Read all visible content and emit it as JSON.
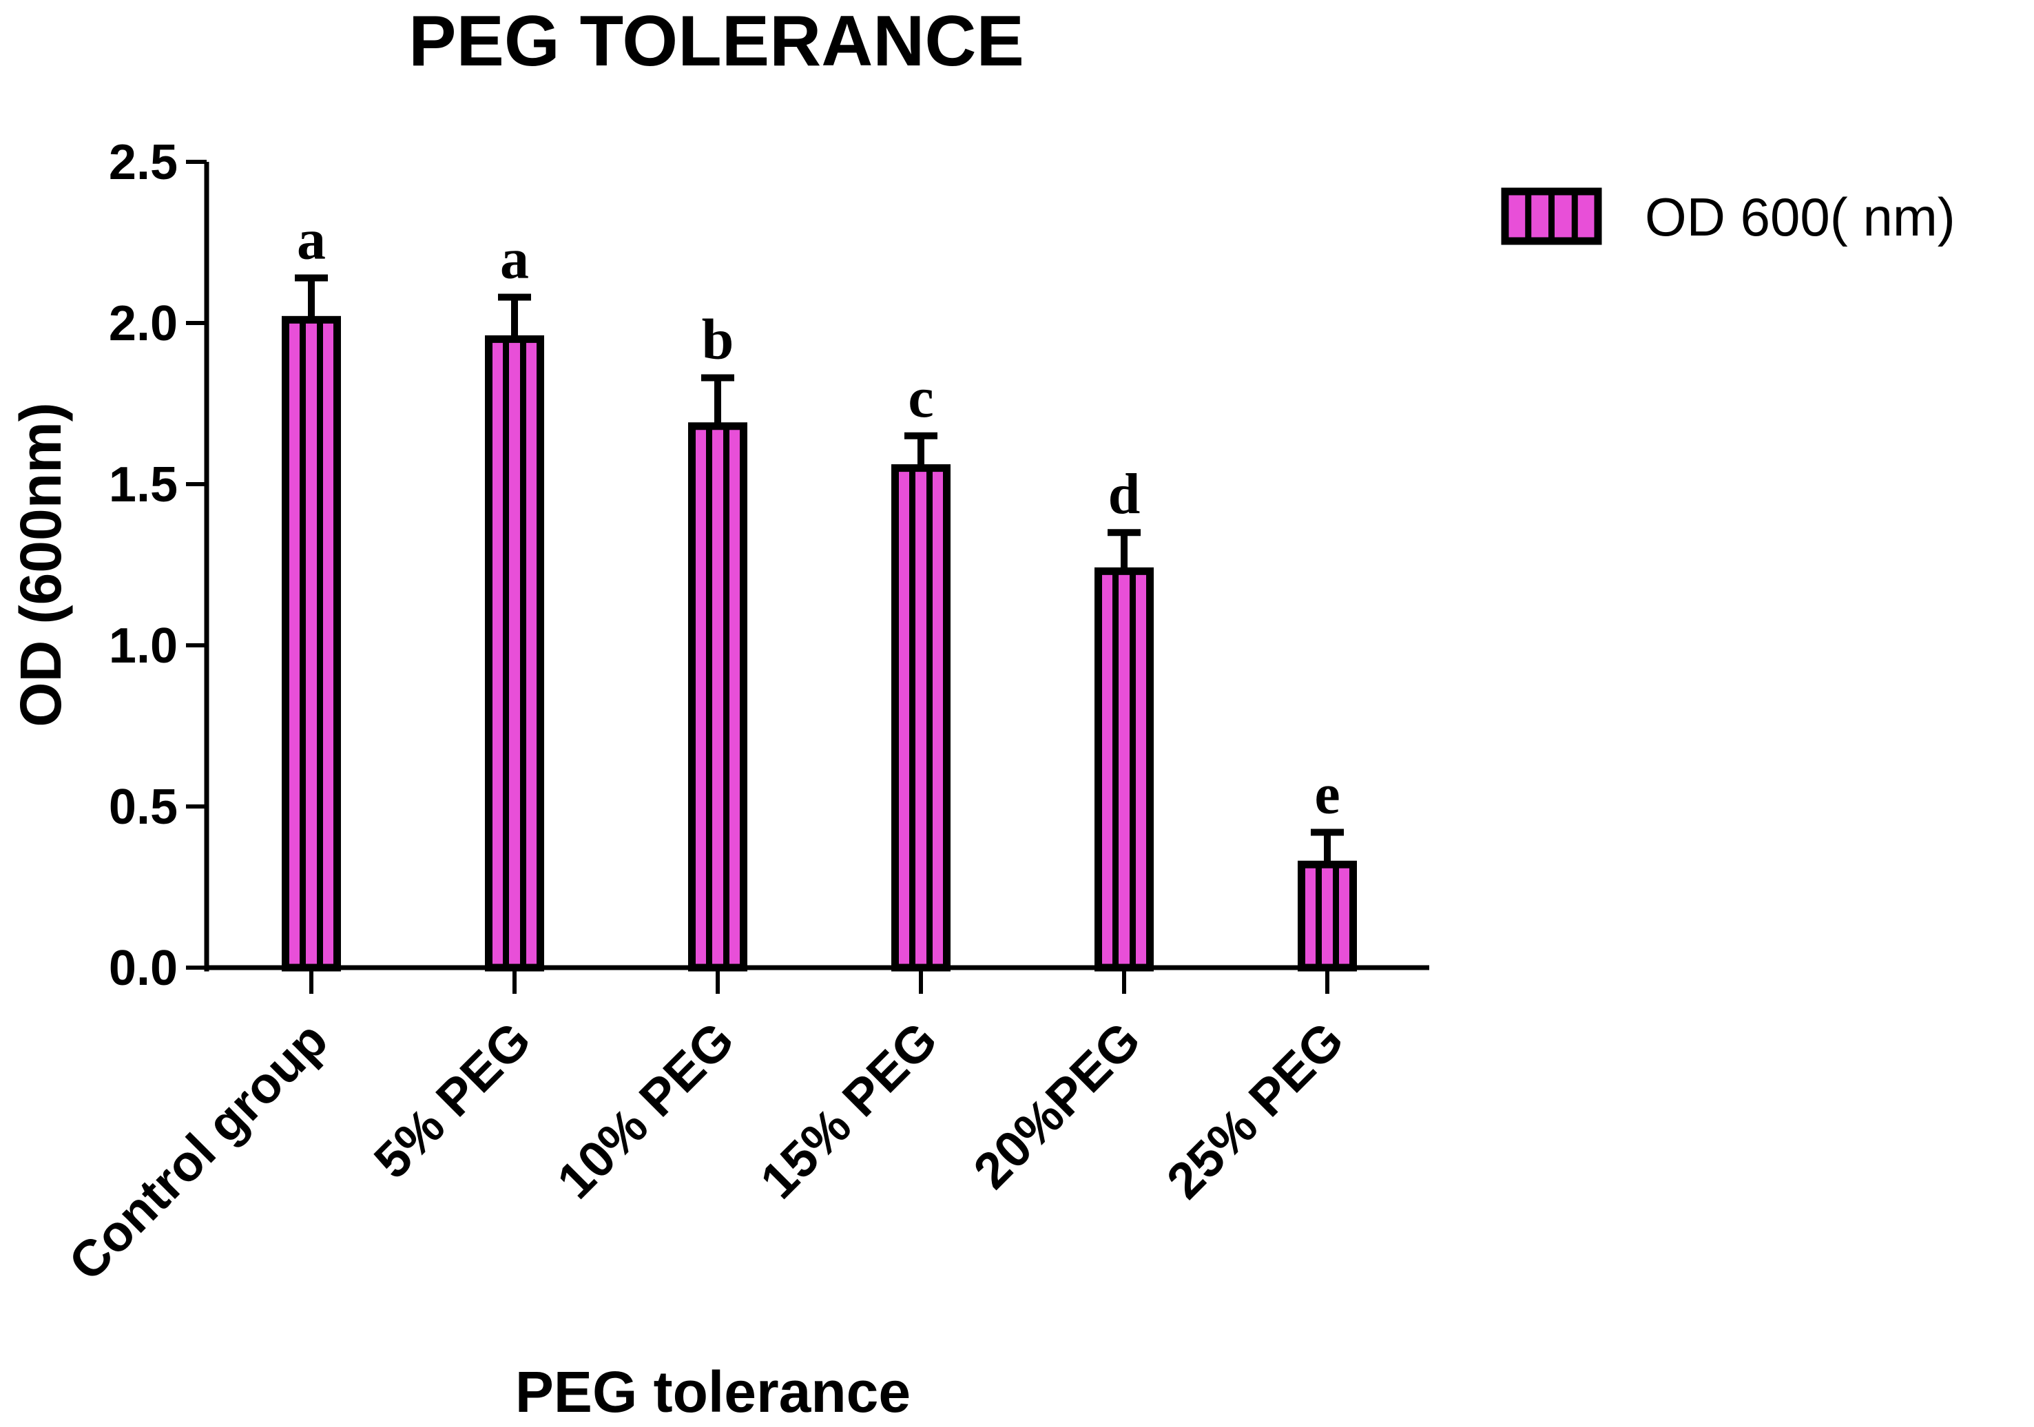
{
  "chart_data": {
    "type": "bar",
    "title": "PEG TOLERANCE",
    "xlabel": "PEG tolerance",
    "ylabel": "OD (600nm)",
    "ylim": [
      0,
      2.5
    ],
    "yticks": [
      "0.0",
      "0.5",
      "1.0",
      "1.5",
      "2.0",
      "2.5"
    ],
    "ytick_values": [
      0,
      0.5,
      1.0,
      1.5,
      2.0,
      2.5
    ],
    "categories": [
      "Control group",
      "5% PEG",
      "10% PEG",
      "15% PEG",
      "20%PEG",
      "25% PEG"
    ],
    "series": [
      {
        "name": "OD 600( nm)",
        "values": [
          2.01,
          1.95,
          1.68,
          1.55,
          1.23,
          0.32
        ],
        "errors": [
          0.13,
          0.13,
          0.15,
          0.1,
          0.12,
          0.1
        ]
      }
    ],
    "significance": [
      "a",
      "a",
      "b",
      "c",
      "d",
      "e"
    ],
    "legend_position": "top-right",
    "grid": false
  },
  "colors": {
    "bar_fill": "#e84fd8",
    "bar_stripe": "#000000",
    "axis": "#000000",
    "background": "#ffffff"
  }
}
